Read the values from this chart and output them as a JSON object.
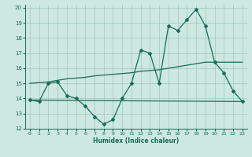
{
  "xlabel": "Humidex (Indice chaleur)",
  "background_color": "#cce8e0",
  "grid_color": "#a0c8be",
  "line_color": "#1a6b5a",
  "xlim": [
    -0.5,
    23.5
  ],
  "ylim": [
    12,
    20.2
  ],
  "yticks": [
    12,
    13,
    14,
    15,
    16,
    17,
    18,
    19,
    20
  ],
  "xticks": [
    0,
    1,
    2,
    3,
    4,
    5,
    6,
    7,
    8,
    9,
    10,
    11,
    12,
    13,
    14,
    15,
    16,
    17,
    18,
    19,
    20,
    21,
    22,
    23
  ],
  "line1_x": [
    0,
    1,
    2,
    3,
    4,
    5,
    6,
    7,
    8,
    9,
    10,
    11,
    12,
    13,
    14,
    15,
    16,
    17,
    18,
    19,
    20,
    21,
    22,
    23
  ],
  "line1_y": [
    13.9,
    13.8,
    15.0,
    15.1,
    14.2,
    14.0,
    13.5,
    12.8,
    12.3,
    12.6,
    14.0,
    15.0,
    17.2,
    17.0,
    15.0,
    18.8,
    18.5,
    19.2,
    19.9,
    18.8,
    16.4,
    15.7,
    14.5,
    13.8
  ],
  "line2_x": [
    0,
    10,
    23
  ],
  "line2_y": [
    13.9,
    13.85,
    13.8
  ],
  "line3_x": [
    0,
    1,
    2,
    3,
    4,
    5,
    6,
    7,
    8,
    9,
    10,
    11,
    12,
    13,
    14,
    15,
    16,
    17,
    18,
    19,
    20,
    21,
    22,
    23
  ],
  "line3_y": [
    15.0,
    15.05,
    15.1,
    15.2,
    15.3,
    15.35,
    15.4,
    15.5,
    15.55,
    15.6,
    15.65,
    15.7,
    15.8,
    15.85,
    15.9,
    16.0,
    16.1,
    16.2,
    16.3,
    16.4,
    16.4,
    16.4,
    16.4,
    16.4
  ]
}
